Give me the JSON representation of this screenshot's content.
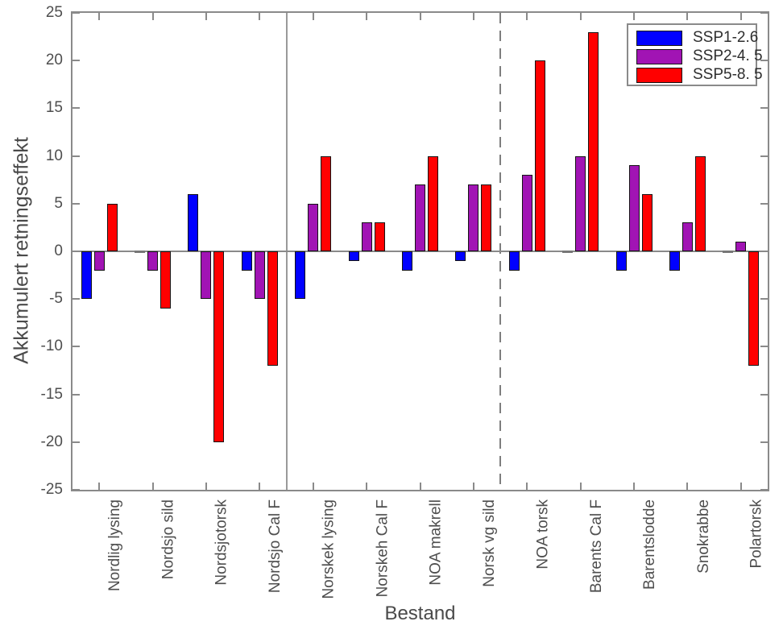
{
  "colors": {
    "series_blue": "#0000ff",
    "series_purple": "#a114b4",
    "series_red": "#ff0000",
    "axis_frame": "#8a8a8a",
    "divider_solid": "#9a9a9a",
    "divider_dashed": "#7e7e7e",
    "tick_text": "#4e4e4e",
    "bar_edge": "#141414",
    "legend_text": "#2e2e2e"
  },
  "chart_data": {
    "type": "bar",
    "title": "",
    "xlabel": "Bestand",
    "ylabel": "Akkumulert retningseffekt",
    "ylim": [
      -25,
      25
    ],
    "yticks": [
      25,
      20,
      15,
      10,
      5,
      0,
      -5,
      -10,
      -15,
      -20,
      -25
    ],
    "grid": false,
    "legend_position": "top-right",
    "categories": [
      "Nordlig lysing",
      "Nordsjo sild",
      "Nordsjotorsk",
      "Nordsjo Cal F",
      "Norskek lysing",
      "Norskeh Cal F",
      "NOA makrell",
      "Norsk vg sild",
      "NOA torsk",
      "Barents Cal F",
      "Barentslodde",
      "Snokrabbe",
      "Polartorsk"
    ],
    "series": [
      {
        "name": "SSP1-2.6",
        "color": "#0000ff",
        "values": [
          -5,
          0,
          6,
          -2,
          -5,
          -1,
          -2,
          -1,
          -2,
          0,
          -2,
          -2,
          0
        ]
      },
      {
        "name": "SSP2-4. 5",
        "color": "#a114b4",
        "values": [
          -2,
          -2,
          -5,
          -5,
          5,
          3,
          7,
          7,
          8,
          10,
          9,
          3,
          1
        ]
      },
      {
        "name": "SSP5-8. 5",
        "color": "#ff0000",
        "values": [
          5,
          -6,
          -20,
          -12,
          10,
          3,
          10,
          7,
          20,
          23,
          6,
          10,
          -12
        ]
      }
    ],
    "dividers": [
      {
        "after_index": 3,
        "style": "solid"
      },
      {
        "after_index": 7,
        "style": "dashed"
      }
    ]
  }
}
